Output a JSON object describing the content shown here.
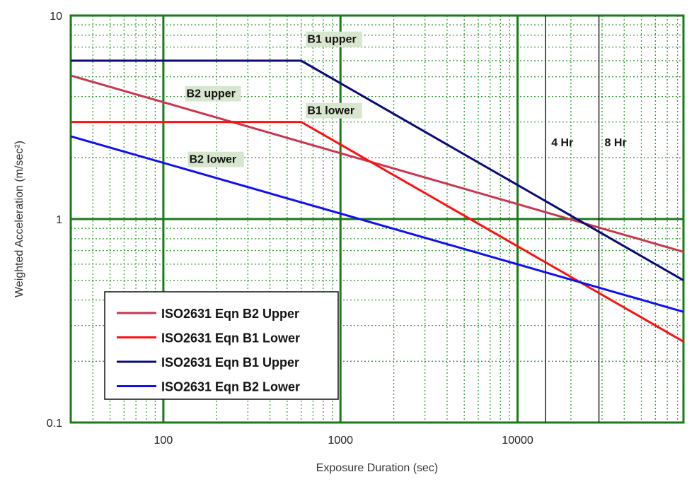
{
  "chart_data": {
    "type": "line",
    "title": "",
    "xlabel": "Exposure Duration (sec)",
    "ylabel": "Weighted Acceleration (m/sec²)",
    "xscale": "log",
    "yscale": "log",
    "xlim": [
      30,
      86400
    ],
    "ylim": [
      0.1,
      10
    ],
    "grid": true,
    "legend_position": "bottom-left",
    "x_ticks": [
      {
        "v": 100,
        "label": "100"
      },
      {
        "v": 1000,
        "label": "1000"
      },
      {
        "v": 10000,
        "label": "10000"
      }
    ],
    "y_ticks": [
      {
        "v": 0.1,
        "label": "0.1"
      },
      {
        "v": 1,
        "label": "1"
      },
      {
        "v": 10,
        "label": "10"
      }
    ],
    "series": [
      {
        "name": "ISO2631 Eqn B2 Upper",
        "color": "#c8374f",
        "points": [
          [
            30,
            5.07
          ],
          [
            86400,
            0.69
          ]
        ]
      },
      {
        "name": "ISO2631 Eqn B1 Lower",
        "color": "#ff1010",
        "points": [
          [
            30,
            3.0
          ],
          [
            600,
            3.0
          ],
          [
            86400,
            0.25
          ]
        ]
      },
      {
        "name": "ISO2631 Eqn B1 Upper",
        "color": "#0a0a78",
        "points": [
          [
            30,
            6.0
          ],
          [
            600,
            6.0
          ],
          [
            86400,
            0.5
          ]
        ]
      },
      {
        "name": "ISO2631 Eqn B2 Lower",
        "color": "#1010f0",
        "points": [
          [
            30,
            2.55
          ],
          [
            86400,
            0.35
          ]
        ]
      }
    ],
    "vlines": [
      {
        "x": 14400,
        "label": "4 Hr"
      },
      {
        "x": 28800,
        "label": "8 Hr"
      }
    ],
    "annotations": [
      {
        "text": "B1 upper",
        "x": 650,
        "y": 7.4
      },
      {
        "text": "B2 upper",
        "x": 135,
        "y": 4.0
      },
      {
        "text": "B1 lower",
        "x": 650,
        "y": 3.3
      },
      {
        "text": "B2 lower",
        "x": 140,
        "y": 1.9
      }
    ]
  }
}
